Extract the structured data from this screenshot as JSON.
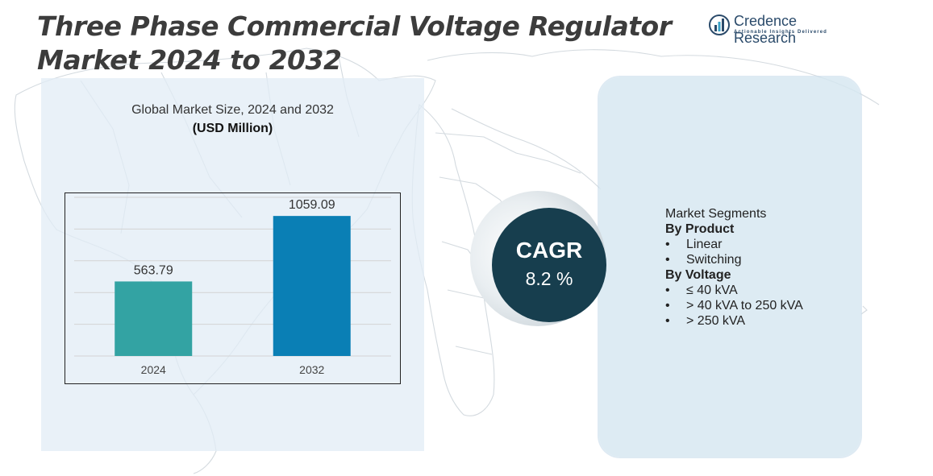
{
  "page": {
    "title_line1": "Three Phase Commercial Voltage Regulator",
    "title_line2": "Market 2024 to 2032"
  },
  "logo": {
    "name": "Credence Research",
    "tagline": "Actionable Insights Delivered",
    "icon": "bar-chart-logo-icon",
    "color": "#2a4a6a"
  },
  "chart_data": {
    "type": "bar",
    "title": "Global Market Size,  2024 and 2032",
    "unit_label": "(USD Million)",
    "categories": [
      "2024",
      "2032"
    ],
    "values": [
      563.79,
      1059.09
    ],
    "value_labels": [
      "563.79",
      "1059.09"
    ],
    "colors": [
      "#33a3a3",
      "#0a7fb5"
    ],
    "ylim": [
      0,
      1200
    ],
    "grid": true,
    "legend": "none"
  },
  "cagr": {
    "label": "CAGR",
    "value": "8.2 %",
    "color": "#173e4e"
  },
  "segments": {
    "heading": "Market Segments",
    "groups": [
      {
        "title": "By Product",
        "items": [
          "Linear",
          "Switching"
        ]
      },
      {
        "title": "By Voltage",
        "items": [
          "≤ 40 kVA",
          "> 40 kVA to 250 kVA",
          "> 250 kVA"
        ]
      }
    ],
    "bullet": "•"
  }
}
